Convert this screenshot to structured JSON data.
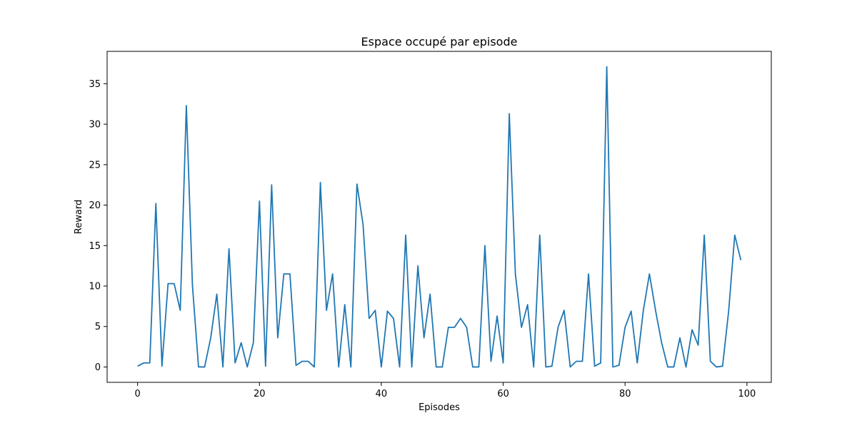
{
  "chart_data": {
    "type": "line",
    "title": "Espace occupé par episode",
    "xlabel": "Episodes",
    "ylabel": "Reward",
    "xlim": [
      -5,
      104
    ],
    "ylim": [
      -1.9,
      39.0
    ],
    "xticks": [
      0,
      20,
      40,
      60,
      80,
      100
    ],
    "yticks": [
      0,
      5,
      10,
      15,
      20,
      25,
      30,
      35
    ],
    "grid": false,
    "line_color": "#1f77b4",
    "x": [
      0,
      1,
      2,
      3,
      4,
      5,
      6,
      7,
      8,
      9,
      10,
      11,
      12,
      13,
      14,
      15,
      16,
      17,
      18,
      19,
      20,
      21,
      22,
      23,
      24,
      25,
      26,
      27,
      28,
      29,
      30,
      31,
      32,
      33,
      34,
      35,
      36,
      37,
      38,
      39,
      40,
      41,
      42,
      43,
      44,
      45,
      46,
      47,
      48,
      49,
      50,
      51,
      52,
      53,
      54,
      55,
      56,
      57,
      58,
      59,
      60,
      61,
      62,
      63,
      64,
      65,
      66,
      67,
      68,
      69,
      70,
      71,
      72,
      73,
      74,
      75,
      76,
      77,
      78,
      79,
      80,
      81,
      82,
      83,
      84,
      85,
      86,
      87,
      88,
      89,
      90,
      91,
      92,
      93,
      94,
      95,
      96,
      97,
      98,
      99
    ],
    "series": [
      {
        "values": [
          0.1,
          0.5,
          0.5,
          20.2,
          0.1,
          10.3,
          10.3,
          7.0,
          32.3,
          10.1,
          0.0,
          0.0,
          3.6,
          9.0,
          0.0,
          14.6,
          0.5,
          3.0,
          0.0,
          3.0,
          20.5,
          0.1,
          22.5,
          3.6,
          11.5,
          11.5,
          0.2,
          0.7,
          0.7,
          0.0,
          22.8,
          7.0,
          11.5,
          0.0,
          7.7,
          0.0,
          22.6,
          17.6,
          6.0,
          7.0,
          0.0,
          6.9,
          6.0,
          0.0,
          16.3,
          0.0,
          12.5,
          3.6,
          9.0,
          0.0,
          0.0,
          4.9,
          4.9,
          6.0,
          4.9,
          0.0,
          0.0,
          15.0,
          0.7,
          6.3,
          0.5,
          31.3,
          11.5,
          4.9,
          7.7,
          0.0,
          16.3,
          0.0,
          0.1,
          4.9,
          7.0,
          0.0,
          0.7,
          0.7,
          11.5,
          0.1,
          0.5,
          37.1,
          0.0,
          0.2,
          4.9,
          6.9,
          0.5,
          7.0,
          11.5,
          7.0,
          3.0,
          0.0,
          0.0,
          3.6,
          0.0,
          4.6,
          2.7,
          16.3,
          0.7,
          0.0,
          0.1,
          6.9,
          16.3,
          13.2
        ]
      }
    ]
  }
}
